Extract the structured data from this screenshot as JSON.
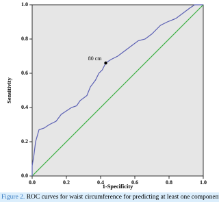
{
  "chart_data": {
    "type": "line",
    "xlabel": "1-Specificity",
    "ylabel": "Sensitivity",
    "xlim": [
      0,
      1
    ],
    "ylim": [
      0,
      1
    ],
    "xticks": [
      {
        "value": 0,
        "label": "0.0"
      },
      {
        "value": 0.2,
        "label": "0.2"
      },
      {
        "value": 0.4,
        "label": "0.4"
      },
      {
        "value": 0.6,
        "label": "0.6"
      },
      {
        "value": 0.8,
        "label": "0.8"
      },
      {
        "value": 1,
        "label": "1.0"
      }
    ],
    "yticks": [
      {
        "value": 0,
        "label": "0.0"
      },
      {
        "value": 0.2,
        "label": "0.2"
      },
      {
        "value": 0.4,
        "label": "0.4"
      },
      {
        "value": 0.6,
        "label": "0.6"
      },
      {
        "value": 0.8,
        "label": "0.8"
      },
      {
        "value": 1,
        "label": "1.0"
      }
    ],
    "background": "#e6e6e6",
    "series": [
      {
        "color": "#5b60b4",
        "x": [
          0,
          0,
          0.01,
          0.02,
          0.04,
          0.07,
          0.1,
          0.14,
          0.17,
          0.2,
          0.23,
          0.26,
          0.28,
          0.32,
          0.34,
          0.37,
          0.39,
          0.41,
          0.43,
          0.46,
          0.5,
          0.54,
          0.58,
          0.62,
          0.66,
          0.7,
          0.73,
          0.75,
          0.79,
          0.84,
          0.88,
          0.92,
          0.95,
          1
        ],
        "y": [
          0,
          0.06,
          0.12,
          0.2,
          0.27,
          0.28,
          0.3,
          0.32,
          0.36,
          0.38,
          0.4,
          0.41,
          0.44,
          0.47,
          0.52,
          0.56,
          0.6,
          0.62,
          0.66,
          0.68,
          0.7,
          0.73,
          0.76,
          0.79,
          0.8,
          0.83,
          0.86,
          0.88,
          0.9,
          0.92,
          0.95,
          0.98,
          1,
          1
        ]
      },
      {
        "color": "#3cb043",
        "x": [
          0,
          1
        ],
        "y": [
          0,
          1
        ]
      }
    ],
    "annotations": [
      {
        "text": "80 cm",
        "x": 0.43,
        "y": 0.66
      }
    ]
  },
  "caption": {
    "label": "Figure 2.",
    "text": "ROC curves for waist circumference for predicting at least one component"
  }
}
